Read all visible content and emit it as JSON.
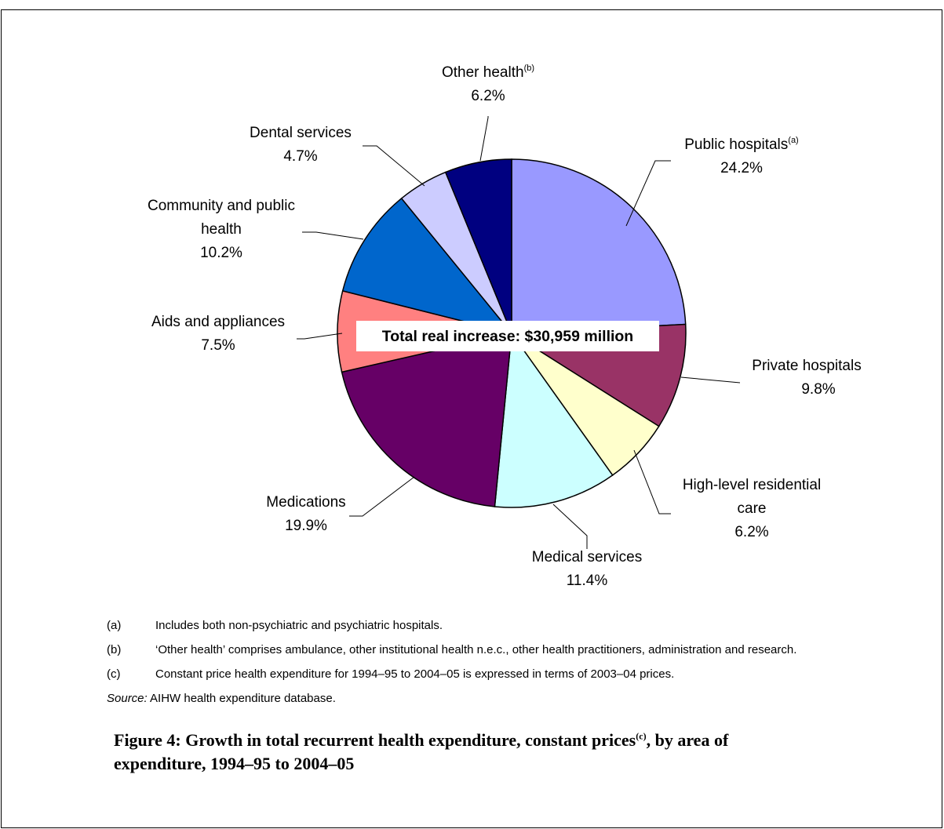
{
  "chart_data": {
    "type": "pie",
    "center_label": "Total real increase: $30,959 million",
    "slices": [
      {
        "label": "Public hospitals",
        "sup": "(a)",
        "value": 24.2,
        "value_label": "24.2%",
        "color": "#9999FF"
      },
      {
        "label": "Private hospitals",
        "sup": "",
        "value": 9.8,
        "value_label": "9.8%",
        "color": "#993366"
      },
      {
        "label": "High-level residential care",
        "sup": "",
        "value": 6.2,
        "value_label": "6.2%",
        "color": "#FFFFCC"
      },
      {
        "label": "Medical services",
        "sup": "",
        "value": 11.4,
        "value_label": "11.4%",
        "color": "#CCFFFF"
      },
      {
        "label": "Medications",
        "sup": "",
        "value": 19.9,
        "value_label": "19.9%",
        "color": "#660066"
      },
      {
        "label": "Aids and appliances",
        "sup": "",
        "value": 7.5,
        "value_label": "7.5%",
        "color": "#FF8080"
      },
      {
        "label": "Community and public health",
        "sup": "",
        "value": 10.2,
        "value_label": "10.2%",
        "color": "#0066CC"
      },
      {
        "label": "Dental services",
        "sup": "",
        "value": 4.7,
        "value_label": "4.7%",
        "color": "#CCCCFF"
      },
      {
        "label": "Other health",
        "sup": "(b)",
        "value": 6.2,
        "value_label": "6.2%",
        "color": "#000080"
      }
    ]
  },
  "notes": [
    {
      "tag": "(a)",
      "text": "Includes both non-psychiatric and psychiatric hospitals."
    },
    {
      "tag": "(b)",
      "text": "‘Other health’ comprises ambulance, other institutional health n.e.c., other health practitioners, administration and research."
    },
    {
      "tag": "(c)",
      "text": "Constant price health expenditure for 1994–95 to 2004–05 is expressed in terms of 2003–04 prices."
    }
  ],
  "source": {
    "label": "Source:",
    "text": " AIHW health expenditure database."
  },
  "caption": {
    "part1": "Figure 4: Growth in total recurrent health expenditure, constant prices",
    "sup": "(c)",
    "part2": ", by area of expenditure, 1994–95 to 2004–05"
  }
}
